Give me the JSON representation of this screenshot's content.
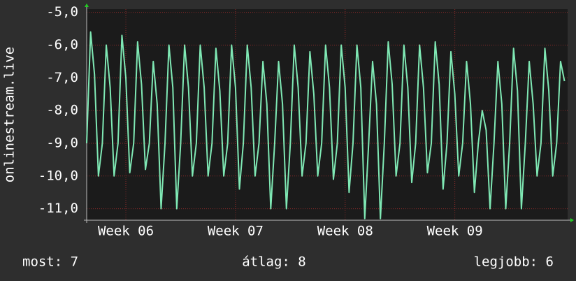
{
  "chart_data": {
    "type": "line",
    "y_label": "onlinestream.live",
    "footer": [
      "most: 7",
      "átlag: 8",
      "legjobb: 6"
    ],
    "x": [
      0,
      0.25,
      0.5,
      0.75,
      1,
      1.25,
      1.5,
      1.75,
      2,
      2.25,
      2.5,
      2.75,
      3,
      3.25,
      3.5,
      3.75,
      4,
      4.25,
      4.5,
      4.75,
      5,
      5.25,
      5.5,
      5.75,
      6,
      6.25,
      6.5,
      6.75,
      7,
      7.25,
      7.5,
      7.75,
      8,
      8.25,
      8.5,
      8.75,
      9,
      9.25,
      9.5,
      9.75,
      10,
      10.25,
      10.5,
      10.75,
      11,
      11.25,
      11.5,
      11.75,
      12,
      12.25,
      12.5,
      12.75,
      13,
      13.25,
      13.5,
      13.75,
      14,
      14.25,
      14.5,
      14.75,
      15,
      15.25,
      15.5,
      15.75,
      16,
      16.25,
      16.5,
      16.75,
      17,
      17.25,
      17.5,
      17.75,
      18,
      18.25,
      18.5,
      18.75,
      19,
      19.25,
      19.5,
      19.75,
      20,
      20.25,
      20.5,
      20.75,
      21,
      21.25,
      21.5,
      21.75,
      22,
      22.25,
      22.5,
      22.75,
      23,
      23.25,
      23.5,
      23.75,
      24,
      24.25,
      24.5,
      24.75,
      25,
      25.25,
      25.5,
      25.75,
      26,
      26.25,
      26.5,
      26.75,
      27,
      27.25,
      27.5,
      27.75,
      28,
      28.25,
      28.5,
      28.75,
      29,
      29.25,
      29.5,
      29.75,
      30,
      30.25,
      30.5
    ],
    "series": [
      {
        "name": null,
        "color": "#7fe8b4",
        "values": [
          -9,
          -5.6,
          -6.9,
          -10,
          -9,
          -6,
          -7.3,
          -10,
          -9,
          -5.7,
          -7,
          -9.9,
          -9,
          -5.9,
          -7.2,
          -9.8,
          -9,
          -6.5,
          -7.8,
          -11,
          -9,
          -6,
          -7.3,
          -11,
          -9,
          -6,
          -7.3,
          -10,
          -9,
          -6,
          -7.3,
          -10,
          -9,
          -6.1,
          -7.4,
          -10,
          -9,
          -6,
          -7.3,
          -10.4,
          -9,
          -6,
          -7.3,
          -10,
          -9,
          -6.5,
          -7.8,
          -11,
          -9,
          -6.5,
          -7.8,
          -11,
          -9,
          -6,
          -7.3,
          -10,
          -9,
          -6.2,
          -7.5,
          -10,
          -9,
          -6,
          -7.3,
          -10.1,
          -9,
          -6,
          -7.3,
          -10.5,
          -9,
          -6,
          -7.3,
          -11.3,
          -9,
          -6.5,
          -7.8,
          -11.3,
          -9,
          -5.9,
          -7.2,
          -10,
          -9,
          -6,
          -7.3,
          -10.2,
          -9,
          -6,
          -7.3,
          -9.9,
          -9,
          -5.9,
          -7.2,
          -10.4,
          -9,
          -6.2,
          -7.5,
          -10,
          -9,
          -6.5,
          -7.8,
          -10.5,
          -9,
          -8,
          -8.6,
          -11,
          -9,
          -6.5,
          -7.8,
          -11,
          -9,
          -6.1,
          -7.4,
          -11,
          -9,
          -6.5,
          -7.8,
          -10,
          -9,
          -6.1,
          -7.4,
          -10,
          -9,
          -6.5,
          -7.1
        ]
      }
    ],
    "xlim": [
      0,
      30.7
    ],
    "xticks": [
      {
        "value": 2.5,
        "label": "Week 06"
      },
      {
        "value": 9.5,
        "label": "Week 07"
      },
      {
        "value": 16.5,
        "label": "Week 08"
      },
      {
        "value": 23.5,
        "label": "Week 09"
      }
    ],
    "ylim": [
      -11.35,
      -4.9
    ],
    "yticks": [
      {
        "value": -5,
        "label": "-5,0"
      },
      {
        "value": -6,
        "label": "-6,0"
      },
      {
        "value": -7,
        "label": "-7,0"
      },
      {
        "value": -8,
        "label": "-8,0"
      },
      {
        "value": -9,
        "label": "-9,0"
      },
      {
        "value": -10,
        "label": "-10,0"
      },
      {
        "value": -11,
        "label": "-11,0"
      }
    ],
    "grid": true
  }
}
